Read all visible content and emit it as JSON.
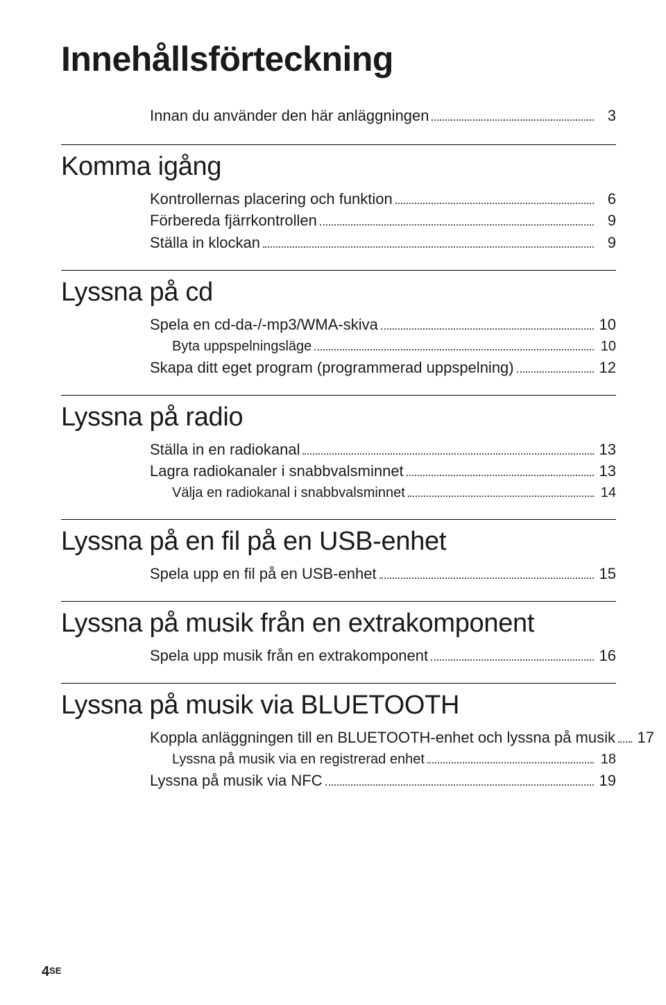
{
  "title": "Innehållsförteckning",
  "intro": {
    "label": "Innan du använder den här anläggningen",
    "page": "3"
  },
  "sections": [
    {
      "heading": "Komma igång",
      "entries": [
        {
          "label": "Kontrollernas placering och funktion",
          "page": "6",
          "sub": false
        },
        {
          "label": "Förbereda fjärrkontrollen",
          "page": "9",
          "sub": false
        },
        {
          "label": "Ställa in klockan",
          "page": "9",
          "sub": false
        }
      ]
    },
    {
      "heading": "Lyssna på cd",
      "entries": [
        {
          "label": "Spela en cd-da-/-mp3/WMA-skiva",
          "page": "10",
          "sub": false
        },
        {
          "label": "Byta uppspelningsläge",
          "page": "10",
          "sub": true
        },
        {
          "label": "Skapa ditt eget program (programmerad uppspelning)",
          "page": "12",
          "sub": false
        }
      ]
    },
    {
      "heading": "Lyssna på radio",
      "entries": [
        {
          "label": "Ställa in en radiokanal",
          "page": "13",
          "sub": false
        },
        {
          "label": "Lagra radiokanaler i snabbvalsminnet",
          "page": "13",
          "sub": false
        },
        {
          "label": "Välja en radiokanal i snabbvalsminnet",
          "page": "14",
          "sub": true
        }
      ]
    },
    {
      "heading": "Lyssna på en fil på en USB-enhet",
      "entries": [
        {
          "label": "Spela upp en fil på en USB-enhet",
          "page": "15",
          "sub": false
        }
      ]
    },
    {
      "heading": "Lyssna på musik från en extrakomponent",
      "entries": [
        {
          "label": "Spela upp musik från en extrakomponent",
          "page": "16",
          "sub": false
        }
      ]
    },
    {
      "heading": "Lyssna på musik via BLUETOOTH",
      "entries": [
        {
          "label": "Koppla anläggningen till en BLUETOOTH-enhet och lyssna på musik",
          "page": "17",
          "sub": false
        },
        {
          "label": "Lyssna på musik via en registrerad enhet",
          "page": "18",
          "sub": true
        },
        {
          "label": "Lyssna på musik via NFC",
          "page": "19",
          "sub": false
        }
      ]
    }
  ],
  "footer": {
    "page_num": "4",
    "lang": "SE"
  },
  "style": {
    "background_color": "#ffffff",
    "text_color": "#1a1a1a",
    "title_fontsize": 50,
    "section_fontsize": 38,
    "entry_fontsize": 22,
    "sub_entry_fontsize": 20,
    "rule_color": "#000000",
    "dot_color": "#555555"
  }
}
